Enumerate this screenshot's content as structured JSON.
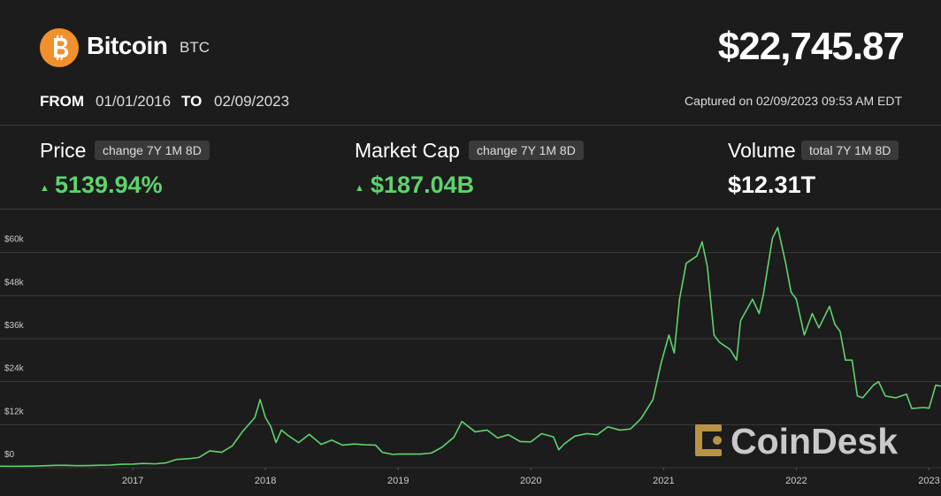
{
  "header": {
    "name": "Bitcoin",
    "symbol": "BTC",
    "price": "$22,745.87",
    "from_label": "FROM",
    "from_date": "01/01/2016",
    "to_label": "TO",
    "to_date": "02/09/2023",
    "captured": "Captured on 02/09/2023 09:53 AM EDT"
  },
  "stats": [
    {
      "label": "Price",
      "period": "change 7Y 1M 8D",
      "value": "5139.94%"
    },
    {
      "label": "Market Cap",
      "period": "change 7Y 1M 8D",
      "value": "$187.04B"
    },
    {
      "label": "Volume",
      "period": "total 7Y 1M 8D",
      "value": "$12.31T"
    }
  ],
  "watermark": "CoinDesk",
  "chart_data": {
    "type": "line",
    "color": "#5fd36e",
    "grid": true,
    "x": [
      2016.0,
      2016.08,
      2016.17,
      2016.25,
      2016.33,
      2016.42,
      2016.5,
      2016.58,
      2016.67,
      2016.75,
      2016.83,
      2016.92,
      2017.0,
      2017.08,
      2017.17,
      2017.25,
      2017.33,
      2017.42,
      2017.5,
      2017.58,
      2017.67,
      2017.75,
      2017.83,
      2017.92,
      2017.96,
      2018.0,
      2018.04,
      2018.08,
      2018.12,
      2018.17,
      2018.25,
      2018.33,
      2018.42,
      2018.5,
      2018.58,
      2018.67,
      2018.75,
      2018.83,
      2018.88,
      2018.96,
      2019.0,
      2019.17,
      2019.25,
      2019.33,
      2019.42,
      2019.48,
      2019.58,
      2019.67,
      2019.75,
      2019.83,
      2019.92,
      2020.0,
      2020.08,
      2020.17,
      2020.21,
      2020.25,
      2020.33,
      2020.42,
      2020.5,
      2020.58,
      2020.67,
      2020.75,
      2020.83,
      2020.92,
      2020.98,
      2021.04,
      2021.08,
      2021.12,
      2021.17,
      2021.25,
      2021.29,
      2021.33,
      2021.38,
      2021.42,
      2021.5,
      2021.55,
      2021.58,
      2021.67,
      2021.72,
      2021.75,
      2021.82,
      2021.86,
      2021.92,
      2021.96,
      2022.0,
      2022.06,
      2022.12,
      2022.17,
      2022.25,
      2022.29,
      2022.33,
      2022.37,
      2022.42,
      2022.46,
      2022.5,
      2022.58,
      2022.62,
      2022.67,
      2022.75,
      2022.83,
      2022.87,
      2022.96,
      2023.0,
      2023.05,
      2023.09
    ],
    "series": [
      {
        "color": "#5fd36e",
        "values": [
          430,
          400,
          420,
          450,
          530,
          670,
          650,
          580,
          610,
          700,
          740,
          960,
          1000,
          1190,
          1080,
          1350,
          2300,
          2500,
          2870,
          4700,
          4300,
          6100,
          10200,
          14000,
          19000,
          14000,
          11500,
          7000,
          10500,
          9000,
          7000,
          9300,
          6500,
          7700,
          6300,
          6600,
          6400,
          6300,
          4300,
          3700,
          3800,
          3800,
          4100,
          5700,
          8500,
          12900,
          10000,
          10500,
          8300,
          9200,
          7300,
          7200,
          9500,
          8600,
          5000,
          6600,
          8800,
          9500,
          9200,
          11400,
          10500,
          10800,
          13700,
          19000,
          29000,
          37000,
          32000,
          47000,
          57000,
          59000,
          63000,
          56000,
          37000,
          35000,
          33000,
          30000,
          41000,
          47000,
          43000,
          48000,
          64000,
          67000,
          57000,
          49000,
          47000,
          37000,
          43000,
          39000,
          45000,
          40000,
          38000,
          30000,
          30000,
          20000,
          19500,
          23000,
          24000,
          20000,
          19500,
          20500,
          16500,
          16800,
          16600,
          23000,
          22746
        ]
      }
    ],
    "xlim": [
      2016,
      2023.09
    ],
    "xticks": [
      2017,
      2018,
      2019,
      2020,
      2021,
      2022,
      2023
    ],
    "ylim": [
      0,
      72000
    ],
    "yticks": [
      {
        "value": 0,
        "label": "$0"
      },
      {
        "value": 12000,
        "label": "$12k"
      },
      {
        "value": 24000,
        "label": "$24k"
      },
      {
        "value": 36000,
        "label": "$36k"
      },
      {
        "value": 48000,
        "label": "$48k"
      },
      {
        "value": 60000,
        "label": "$60k"
      }
    ]
  }
}
